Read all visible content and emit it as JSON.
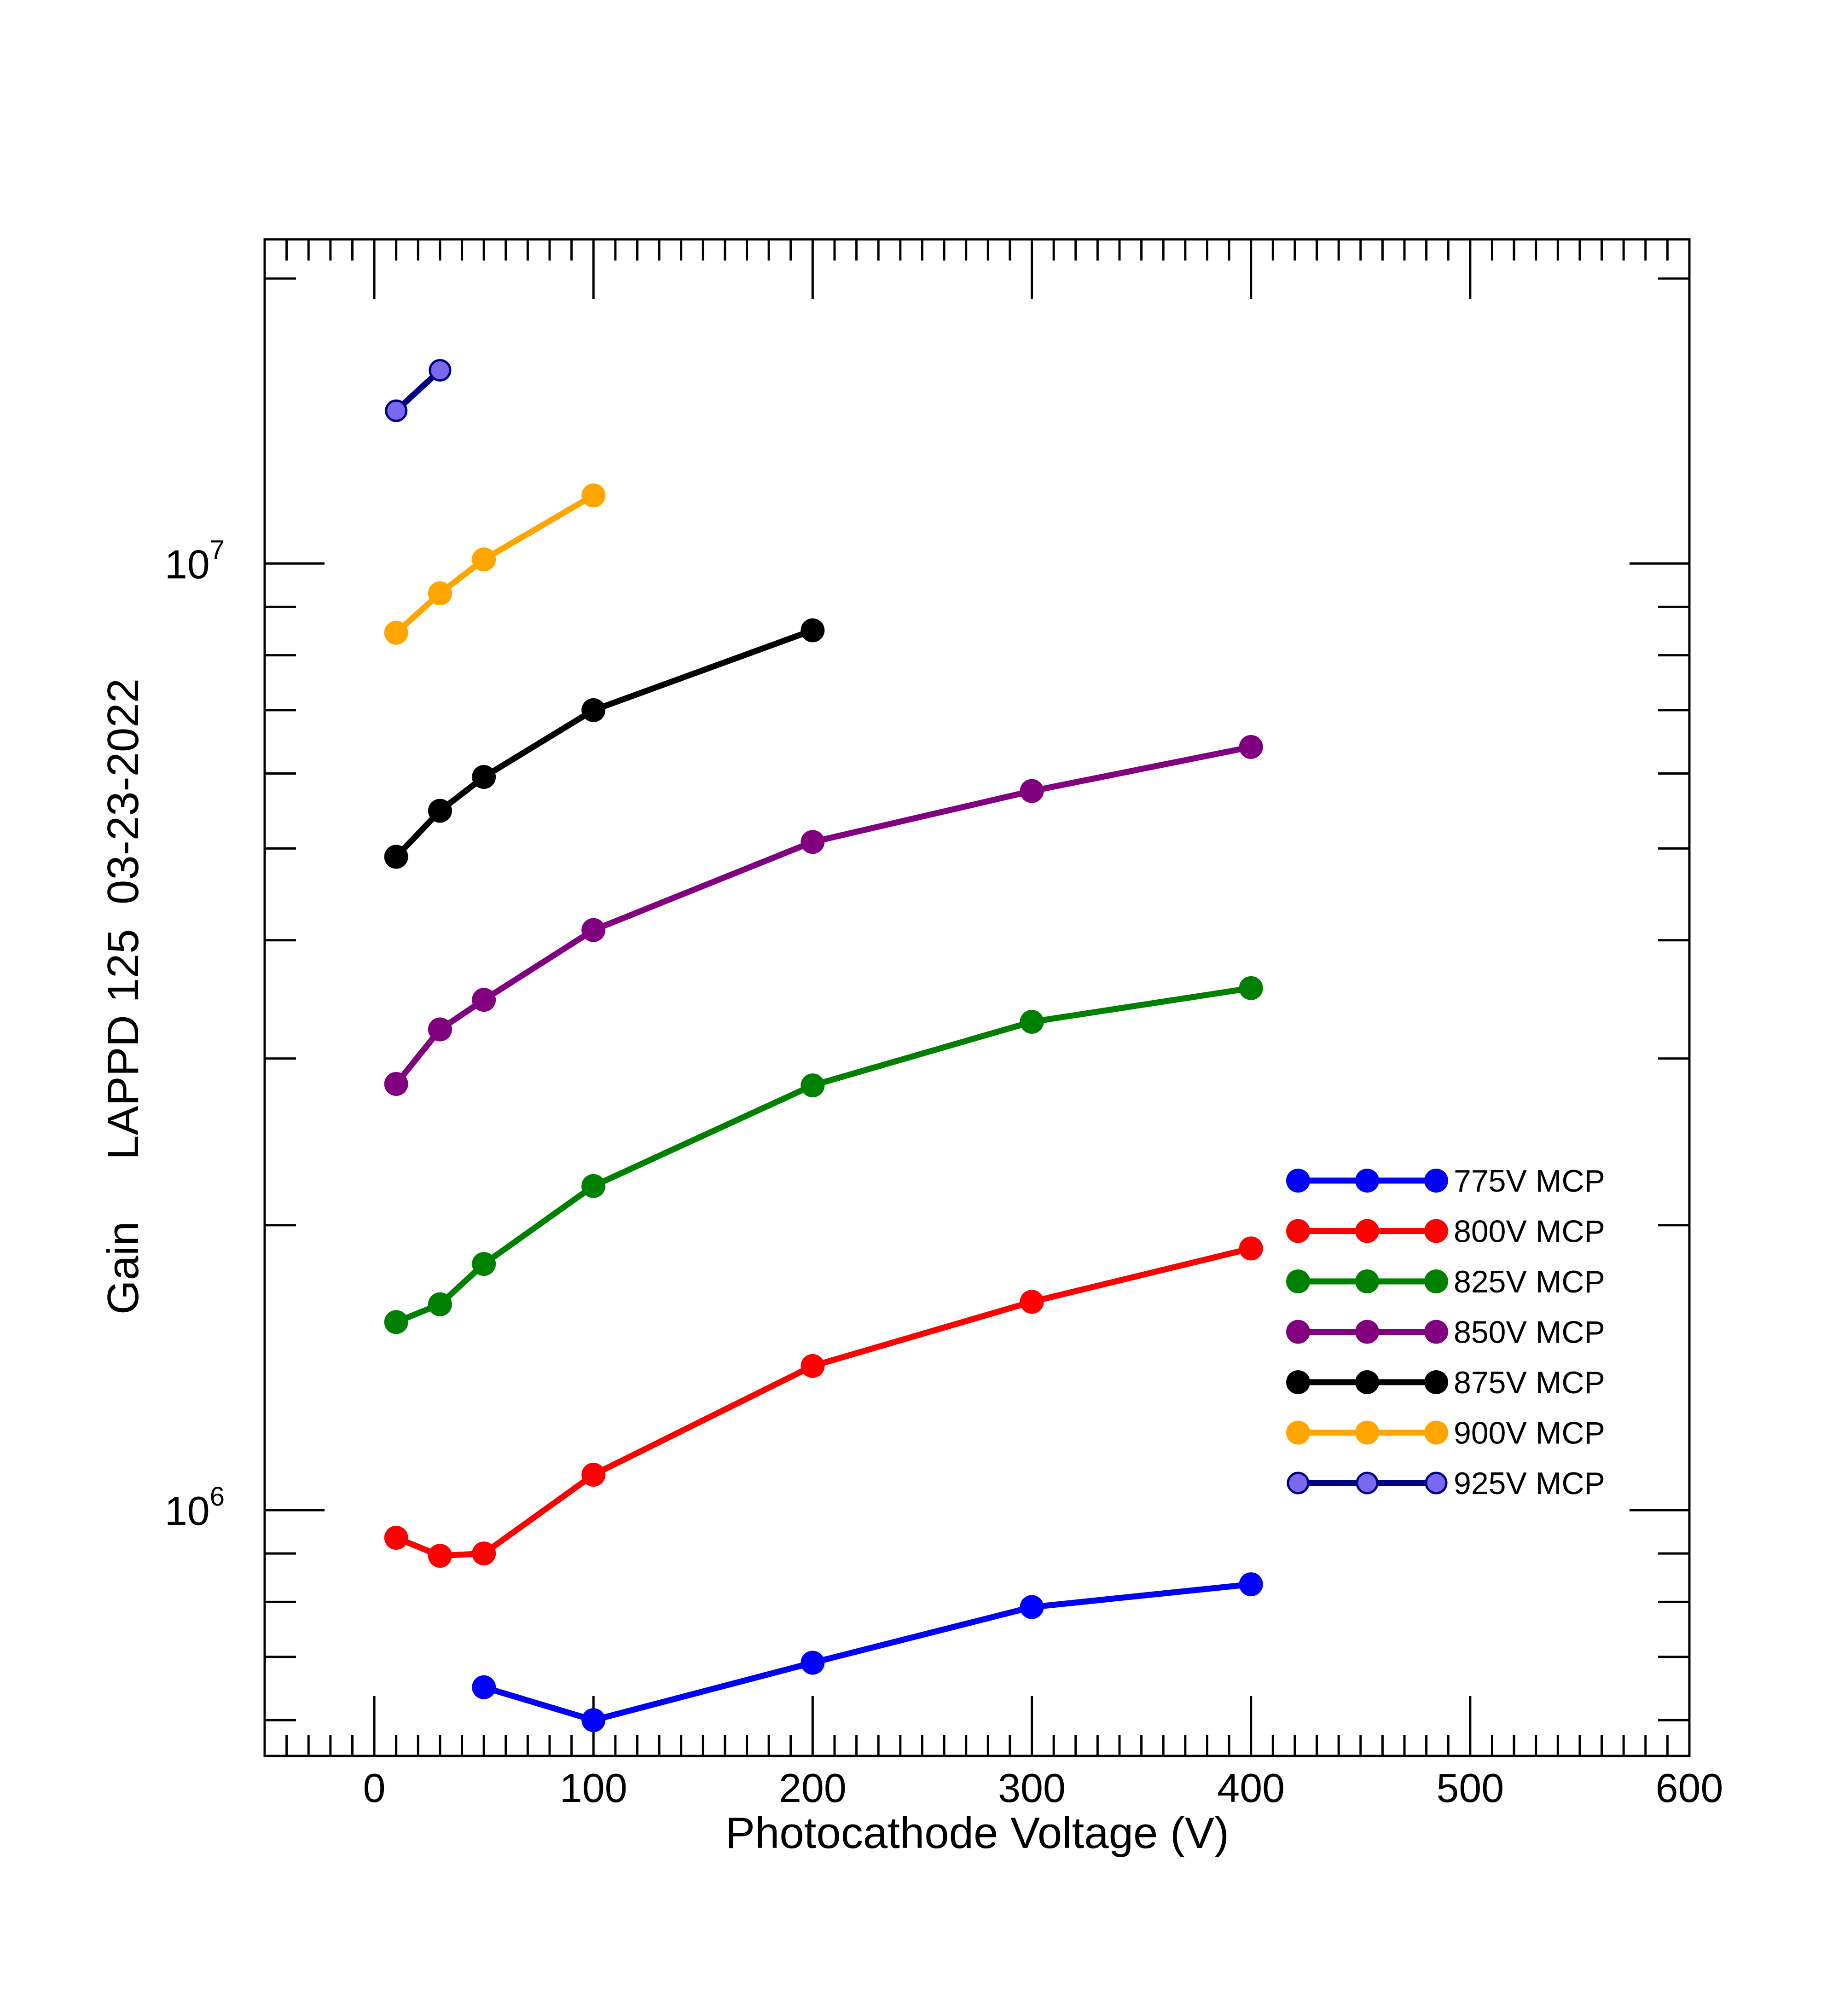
{
  "chart_data": {
    "type": "line",
    "title": "",
    "xlabel": "Photocathode Voltage (V)",
    "ylabel": "Gain     LAPPD 125  03-23-2022",
    "xlim": [
      -50,
      600
    ],
    "ylim": [
      550000,
      22000000
    ],
    "yscale": "log",
    "grid": false,
    "legend_position": "right-lower",
    "x_ticks": [
      0,
      100,
      200,
      300,
      400,
      500,
      600
    ],
    "x_tick_labels": [
      "0",
      "100",
      "200",
      "300",
      "400",
      "500",
      "600"
    ],
    "y_major_ticks": [
      {
        "value": 1000000,
        "base": "10",
        "exp": "6"
      },
      {
        "value": 10000000,
        "base": "10",
        "exp": "7"
      }
    ],
    "series": [
      {
        "name": "775V MCP",
        "color": "#0000ff",
        "marker_fill": "#0000ff",
        "marker_stroke": "#0000ff",
        "marker": "large",
        "x": [
          50,
          100,
          200,
          300,
          400
        ],
        "y": [
          650000,
          600000,
          690000,
          790000,
          835000
        ]
      },
      {
        "name": "800V MCP",
        "color": "#ff0000",
        "marker_fill": "#ff0000",
        "marker_stroke": "#ff0000",
        "marker": "large",
        "x": [
          10,
          30,
          50,
          100,
          200,
          300,
          400
        ],
        "y": [
          935000,
          895000,
          900000,
          1090000,
          1420000,
          1660000,
          1890000
        ]
      },
      {
        "name": "825V MCP",
        "color": "#008000",
        "marker_fill": "#008000",
        "marker_stroke": "#008000",
        "marker": "large",
        "x": [
          10,
          30,
          50,
          100,
          200,
          300,
          400
        ],
        "y": [
          1580000,
          1650000,
          1820000,
          2200000,
          2810000,
          3280000,
          3560000
        ]
      },
      {
        "name": "850V MCP",
        "color": "#800080",
        "marker_fill": "#800080",
        "marker_stroke": "#800080",
        "marker": "large",
        "x": [
          10,
          30,
          50,
          100,
          200,
          300,
          400
        ],
        "y": [
          2820000,
          3220000,
          3460000,
          4100000,
          5080000,
          5750000,
          6400000
        ]
      },
      {
        "name": "875V MCP",
        "color": "#000000",
        "marker_fill": "#000000",
        "marker_stroke": "#000000",
        "marker": "large",
        "x": [
          10,
          30,
          50,
          100,
          200
        ],
        "y": [
          4900000,
          5480000,
          5950000,
          7000000,
          8500000
        ]
      },
      {
        "name": "900V MCP",
        "color": "#ffa500",
        "marker_fill": "#ffa500",
        "marker_stroke": "#ffa500",
        "marker": "large",
        "x": [
          10,
          30,
          50,
          100
        ],
        "y": [
          8450000,
          9300000,
          10100000,
          11800000
        ]
      },
      {
        "name": "925V MCP",
        "color": "#000080",
        "marker_fill": "#7b68ee",
        "marker_stroke": "#000080",
        "marker": "small",
        "x": [
          10,
          30
        ],
        "y": [
          14500000,
          16000000
        ]
      }
    ]
  }
}
